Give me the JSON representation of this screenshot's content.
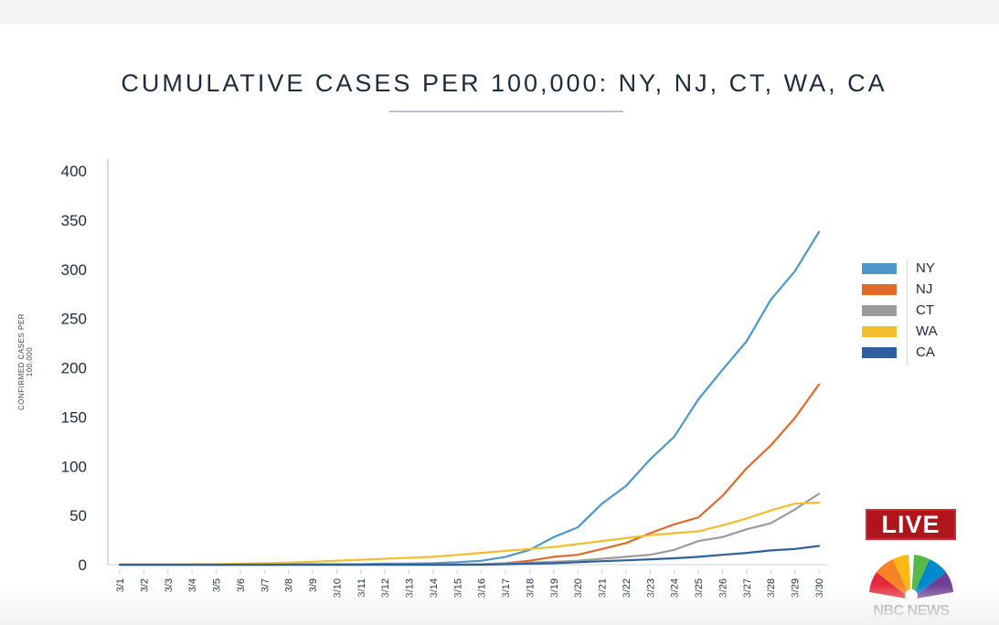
{
  "title": "CUMULATIVE CASES PER 100,000: NY, NJ, CT, WA, CA",
  "live_badge": "LIVE",
  "logo_text": "NBC NEWS",
  "chart_data": {
    "type": "line",
    "title": "CUMULATIVE CASES PER 100,000: NY, NJ, CT, WA, CA",
    "xlabel": "",
    "ylabel": "CONFIRMED CASES PER 100,000",
    "ylim": [
      0,
      400
    ],
    "yticks": [
      0,
      50,
      100,
      150,
      200,
      250,
      300,
      350,
      400
    ],
    "grid": false,
    "legend_position": "right",
    "categories": [
      "3/1",
      "3/2",
      "3/3",
      "3/4",
      "3/5",
      "3/6",
      "3/7",
      "3/8",
      "3/9",
      "3/10",
      "3/11",
      "3/12",
      "3/13",
      "3/14",
      "3/15",
      "3/16",
      "3/17",
      "3/18",
      "3/19",
      "3/20",
      "3/21",
      "3/22",
      "3/23",
      "3/24",
      "3/25",
      "3/26",
      "3/27",
      "3/28",
      "3/29",
      "3/30"
    ],
    "series": [
      {
        "name": "NY",
        "color": "#4d97c9",
        "values": [
          0,
          0,
          0,
          0,
          0,
          0,
          0,
          0.5,
          0.5,
          0.5,
          0.5,
          1,
          1,
          1.5,
          2.5,
          4,
          8,
          15,
          28,
          38,
          62,
          80,
          107,
          130,
          168,
          198,
          227,
          269,
          298,
          338
        ]
      },
      {
        "name": "NJ",
        "color": "#e06a2c",
        "values": [
          0,
          0,
          0,
          0,
          0,
          0,
          0,
          0,
          0,
          0,
          0,
          0,
          0,
          0,
          0,
          0.5,
          1.5,
          4,
          8,
          10,
          16,
          22,
          32,
          41,
          48,
          70,
          98,
          121,
          149,
          183
        ]
      },
      {
        "name": "CT",
        "color": "#9b9b9b",
        "values": [
          0,
          0,
          0,
          0,
          0,
          0,
          0,
          0,
          0,
          0,
          0,
          0,
          0,
          0,
          0,
          0.5,
          1,
          2,
          3,
          4,
          6,
          8,
          10,
          15,
          24,
          28,
          36,
          42,
          56,
          72
        ]
      },
      {
        "name": "WA",
        "color": "#f2bd2f",
        "values": [
          0,
          0,
          0,
          0.5,
          0.5,
          1,
          1.5,
          2,
          3,
          4,
          5,
          6,
          7,
          8,
          10,
          12,
          14,
          16,
          18,
          21,
          24,
          27,
          30,
          32,
          34,
          40,
          47,
          55,
          62,
          63
        ]
      },
      {
        "name": "CA",
        "color": "#2e5f9e",
        "values": [
          0,
          0,
          0,
          0,
          0,
          0,
          0,
          0,
          0,
          0,
          0,
          0,
          0,
          0,
          0,
          0,
          0.5,
          1,
          1.5,
          2.5,
          3.5,
          4.5,
          5.5,
          6.5,
          8,
          10,
          12,
          14.5,
          16,
          19
        ]
      }
    ]
  }
}
